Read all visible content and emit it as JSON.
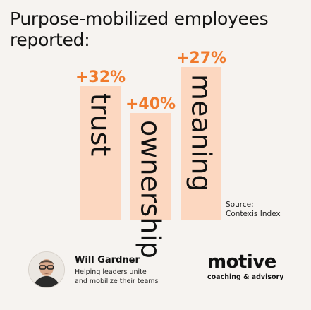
{
  "title": "Purpose-mobilized employees reported:",
  "source": {
    "line1": "Source:",
    "line2": "Contexis Index"
  },
  "author": {
    "name": "Will Gardner",
    "tagline_line1": "Helping leaders unite",
    "tagline_line2": "and mobilize their teams"
  },
  "logo": {
    "word": "motive",
    "subtitle": "coaching & advisory"
  },
  "colors": {
    "bar": "#fcd7c0",
    "accent": "#f07a2c",
    "text": "#111111",
    "background": "#f6f3f0"
  },
  "chart_data": {
    "type": "bar",
    "title": "Purpose-mobilized employees reported:",
    "xlabel": "",
    "ylabel": "",
    "categories": [
      "trust",
      "ownership",
      "meaning"
    ],
    "values": [
      32,
      40,
      27
    ],
    "value_labels": [
      "+32%",
      "+40%",
      "+27%"
    ],
    "unit": "%",
    "note": "Bar heights are not drawn to scale; in the image ownership is tallest, meaning middle, trust shortest",
    "visual_order": [
      2,
      0,
      1
    ]
  }
}
